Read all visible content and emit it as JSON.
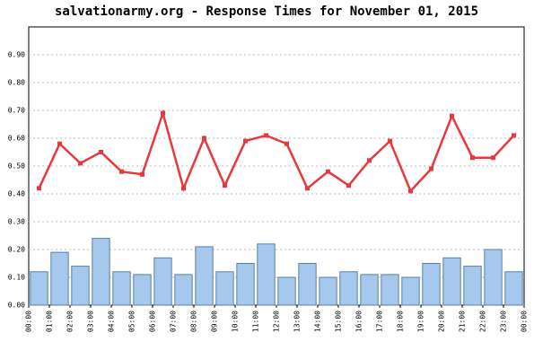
{
  "chart_data": {
    "type": "bar_line",
    "title": "salvationarmy.org - Response Times for November 01, 2015",
    "categories": [
      "00:00",
      "01:00",
      "02:00",
      "03:00",
      "04:00",
      "05:00",
      "06:00",
      "07:00",
      "08:00",
      "09:00",
      "10:00",
      "11:00",
      "12:00",
      "13:00",
      "14:00",
      "15:00",
      "16:00",
      "17:00",
      "18:00",
      "19:00",
      "20:00",
      "21:00",
      "22:00",
      "23:00"
    ],
    "x_end_label": "00:00",
    "series": [
      {
        "type": "bar",
        "color": "#a6c8ec",
        "values": [
          0.12,
          0.19,
          0.14,
          0.24,
          0.12,
          0.11,
          0.17,
          0.11,
          0.21,
          0.12,
          0.15,
          0.22,
          0.1,
          0.15,
          0.1,
          0.12,
          0.11,
          0.11,
          0.1,
          0.15,
          0.17,
          0.14,
          0.2,
          0.12
        ]
      },
      {
        "type": "line",
        "color": "#e8383d",
        "values": [
          0.42,
          0.58,
          0.51,
          0.55,
          0.48,
          0.47,
          0.69,
          0.42,
          0.6,
          0.43,
          0.59,
          0.61,
          0.58,
          0.42,
          0.48,
          0.43,
          0.52,
          0.59,
          0.41,
          0.49,
          0.68,
          0.53,
          0.53,
          0.61
        ]
      }
    ],
    "ylim": [
      0,
      1.0
    ],
    "yticks": [
      {
        "value": 0,
        "label": "0.00"
      },
      {
        "value": 0.1,
        "label": "0.10"
      },
      {
        "value": 0.2,
        "label": "0.20"
      },
      {
        "value": 0.3,
        "label": "0.30"
      },
      {
        "value": 0.4,
        "label": "0.40"
      },
      {
        "value": 0.5,
        "label": "0.50"
      },
      {
        "value": 0.6,
        "label": "0.60"
      },
      {
        "value": 0.7,
        "label": "0.70"
      },
      {
        "value": 0.8,
        "label": "0.80"
      },
      {
        "value": 0.9,
        "label": "0.90"
      }
    ],
    "grid": true
  }
}
